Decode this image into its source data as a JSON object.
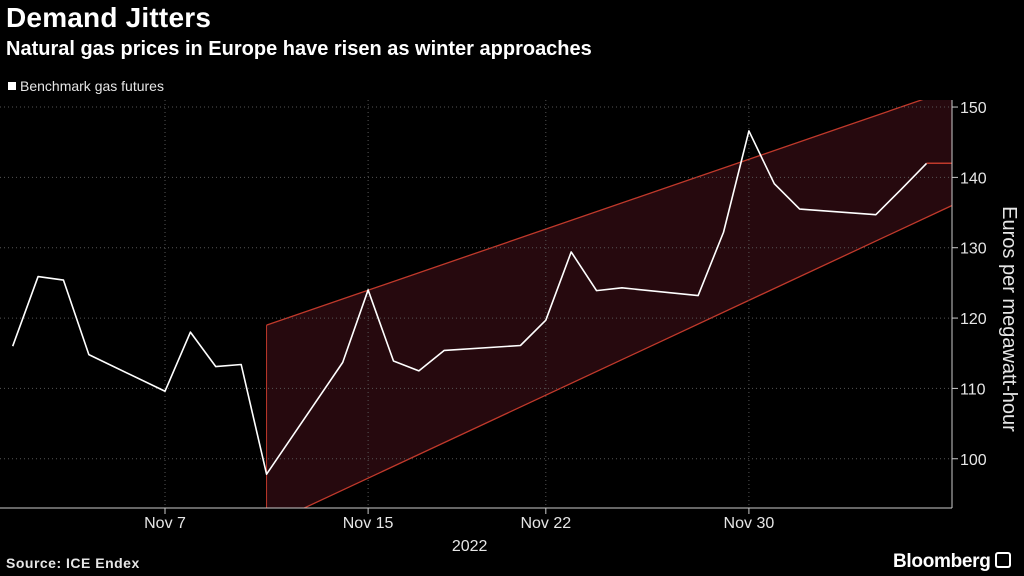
{
  "header": {
    "title": "Demand Jitters",
    "subtitle": "Natural gas prices in Europe have risen as winter approaches"
  },
  "legend": {
    "label": "Benchmark gas futures"
  },
  "footer": {
    "source": "Source: ICE Endex",
    "brand": "Bloomberg"
  },
  "colors": {
    "background": "#000000",
    "line": "#ffffff",
    "channel_fill": "#2a0a10",
    "channel_edge": "#c0392b",
    "grid": "#555555"
  },
  "chart_data": {
    "type": "line",
    "title": "Demand Jitters",
    "subtitle": "Natural gas prices in Europe have risen as winter approaches",
    "ylabel": "Euros per megawatt-hour",
    "xlabel": "2022",
    "ylim": [
      93,
      151
    ],
    "yticks": [
      100,
      110,
      120,
      130,
      140,
      150
    ],
    "xticks": [
      "Nov 7",
      "Nov 15",
      "Nov 22",
      "Nov 30"
    ],
    "grid": true,
    "legend_position": "top-left",
    "series": [
      {
        "name": "Benchmark gas futures",
        "x": [
          "2022-11-01",
          "2022-11-02",
          "2022-11-03",
          "2022-11-04",
          "2022-11-07",
          "2022-11-08",
          "2022-11-09",
          "2022-11-10",
          "2022-11-11",
          "2022-11-14",
          "2022-11-15",
          "2022-11-16",
          "2022-11-17",
          "2022-11-18",
          "2022-11-21",
          "2022-11-22",
          "2022-11-23",
          "2022-11-24",
          "2022-11-25",
          "2022-11-28",
          "2022-11-29",
          "2022-11-30",
          "2022-12-01",
          "2022-12-02",
          "2022-12-05",
          "2022-12-06",
          "2022-12-07"
        ],
        "values": [
          116.0,
          125.9,
          125.4,
          114.8,
          109.6,
          118.0,
          113.1,
          113.4,
          97.8,
          113.7,
          124.0,
          113.9,
          112.5,
          115.4,
          116.1,
          119.7,
          129.4,
          123.9,
          124.3,
          123.2,
          132.2,
          146.6,
          139.1,
          135.5,
          134.7,
          138.3,
          142.0
        ]
      }
    ],
    "annotations": [
      {
        "type": "trend-channel",
        "start": "2022-11-11",
        "end": "2022-12-08",
        "upper": [
          119.0,
          152.5
        ],
        "lower": [
          90.5,
          136.0
        ]
      }
    ]
  }
}
